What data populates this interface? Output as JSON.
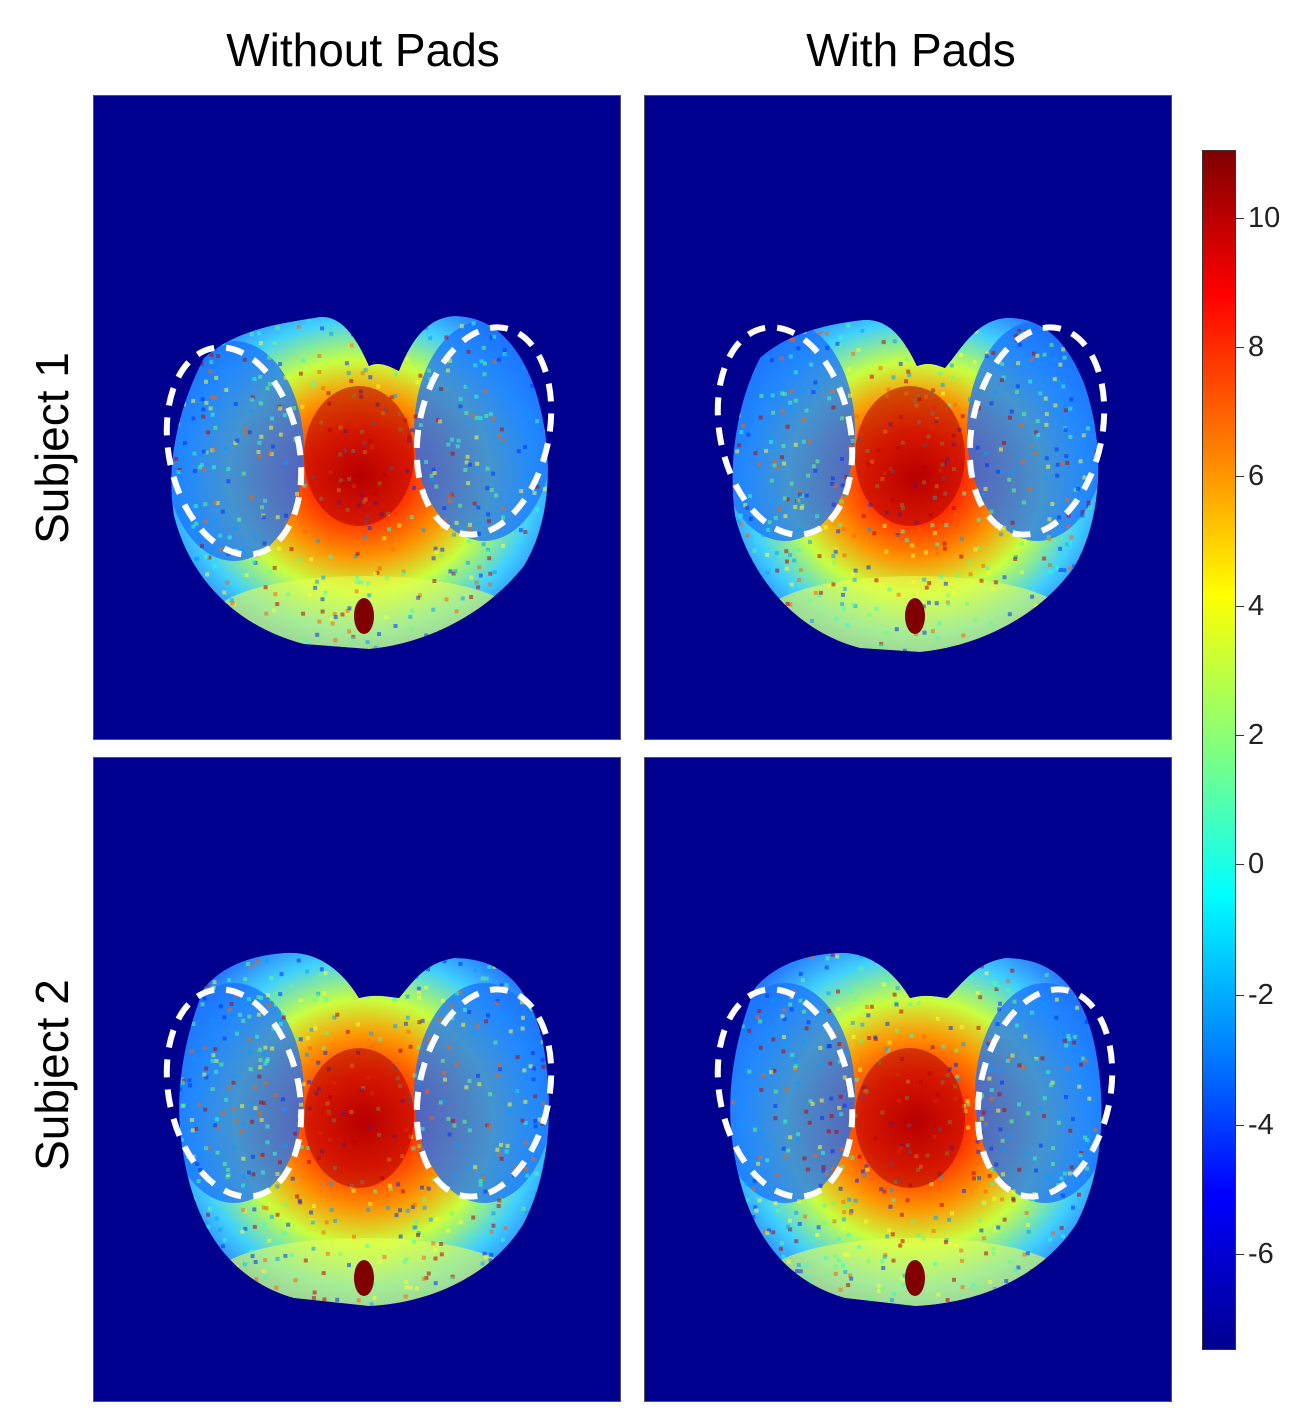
{
  "columns": [
    "Without Pads",
    "With Pads"
  ],
  "rows": [
    "Subject 1",
    "Subject 2"
  ],
  "colorbar": {
    "ticks": [
      "10",
      "8",
      "6",
      "4",
      "2",
      "0",
      "-2",
      "-4",
      "-6"
    ],
    "colors": [
      "#00008f",
      "#0000ff",
      "#0080ff",
      "#00ffff",
      "#80ff80",
      "#ffff00",
      "#ff8000",
      "#ff0000",
      "#800000"
    ]
  },
  "panels": [
    {
      "id": "s1-without",
      "column": "Without Pads",
      "row": "Subject 1"
    },
    {
      "id": "s1-with",
      "column": "With Pads",
      "row": "Subject 1"
    },
    {
      "id": "s2-without",
      "column": "Without Pads",
      "row": "Subject 2"
    },
    {
      "id": "s2-with",
      "column": "With Pads",
      "row": "Subject 2"
    }
  ]
}
